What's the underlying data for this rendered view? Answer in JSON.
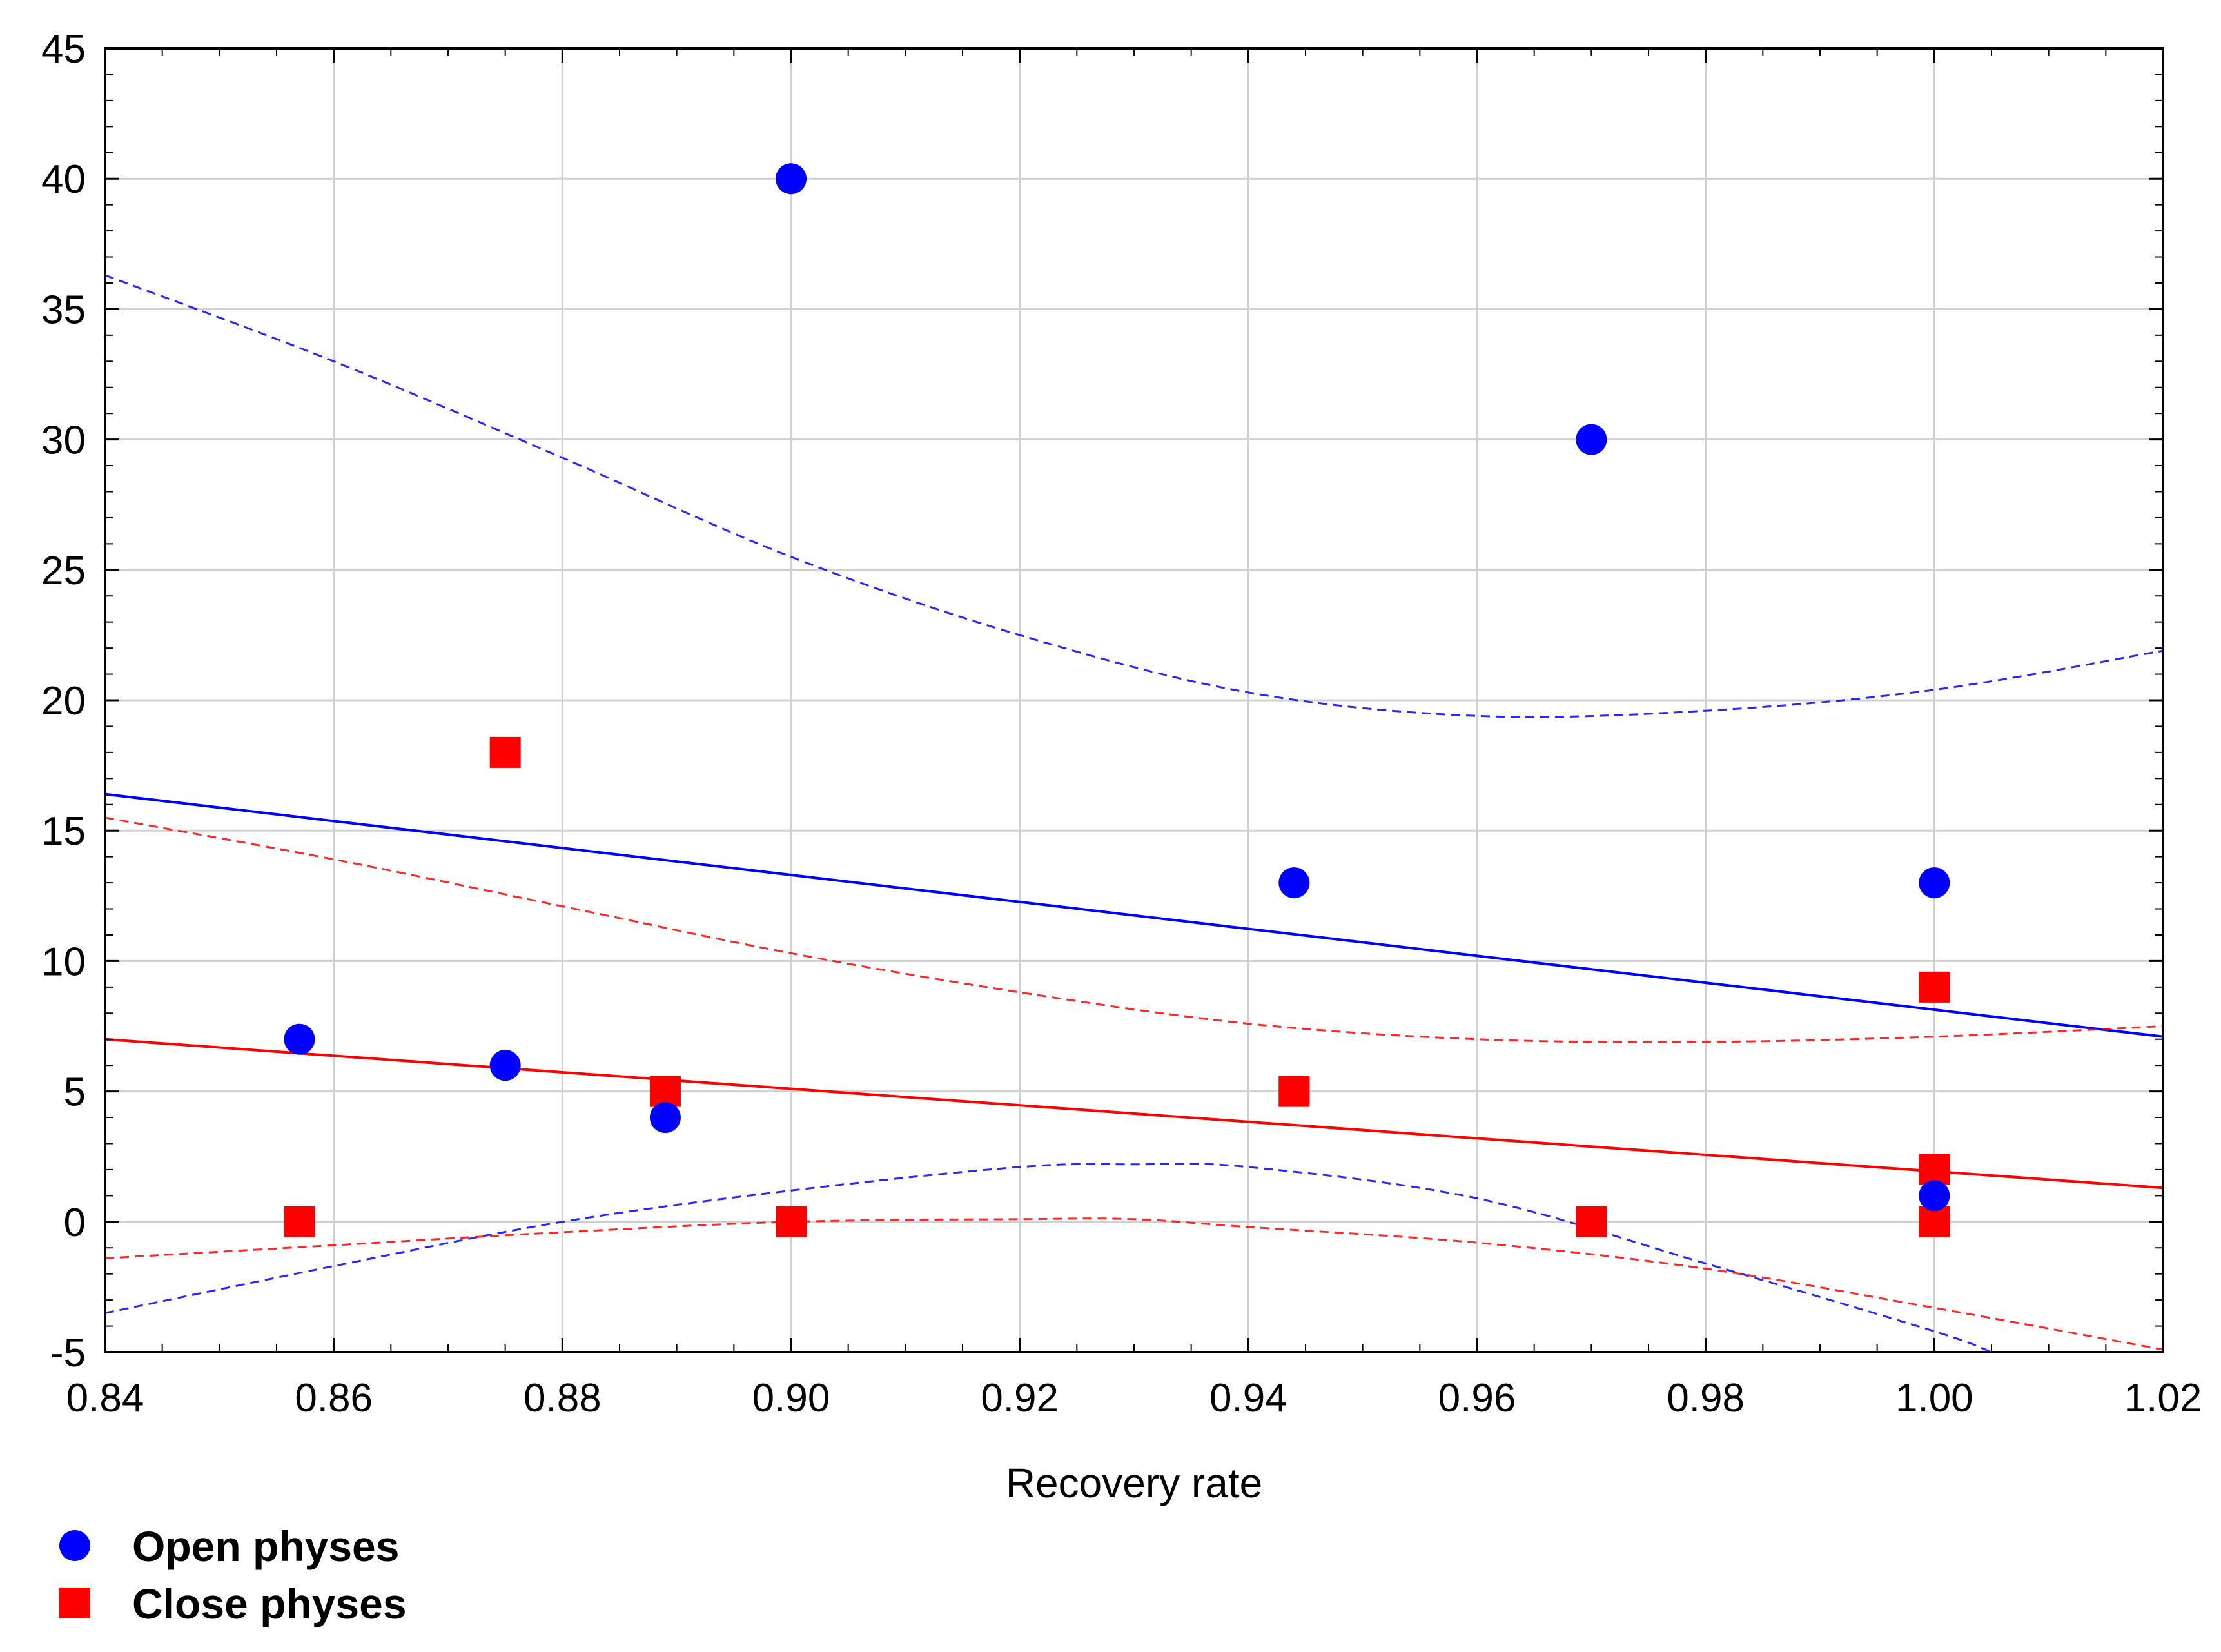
{
  "chart_data": {
    "type": "scatter",
    "title": "",
    "xlabel": "Recovery rate",
    "ylabel": "",
    "xlim": [
      0.84,
      1.02
    ],
    "ylim": [
      -5,
      45
    ],
    "xticks": [
      0.84,
      0.86,
      0.88,
      0.9,
      0.92,
      0.94,
      0.96,
      0.98,
      1.0,
      1.02
    ],
    "xtick_labels": [
      "0.84",
      "0.86",
      "0.88",
      "0.90",
      "0.92",
      "0.94",
      "0.96",
      "0.98",
      "1.00",
      "1.02"
    ],
    "yticks": [
      -5,
      0,
      5,
      10,
      15,
      20,
      25,
      30,
      35,
      40,
      45
    ],
    "ytick_labels": [
      "-5",
      "0",
      "5",
      "10",
      "15",
      "20",
      "25",
      "30",
      "35",
      "40",
      "45"
    ],
    "grid": true,
    "legend_position": "bottom-left",
    "series": [
      {
        "name": "Open physes",
        "marker": "circle",
        "color": "#0000ff",
        "points": [
          [
            0.857,
            7
          ],
          [
            0.875,
            6
          ],
          [
            0.889,
            4
          ],
          [
            0.9,
            40
          ],
          [
            0.944,
            13
          ],
          [
            0.97,
            30
          ],
          [
            1.0,
            13
          ],
          [
            1.0,
            1
          ]
        ],
        "fit_line": [
          [
            0.84,
            16.4
          ],
          [
            1.02,
            7.1
          ]
        ],
        "ci_upper": [
          [
            0.84,
            36.3
          ],
          [
            0.86,
            33.0
          ],
          [
            0.88,
            29.3
          ],
          [
            0.9,
            25.5
          ],
          [
            0.92,
            22.5
          ],
          [
            0.94,
            20.3
          ],
          [
            0.96,
            19.4
          ],
          [
            0.98,
            19.6
          ],
          [
            1.0,
            20.4
          ],
          [
            1.02,
            21.9
          ]
        ],
        "ci_lower": [
          [
            0.84,
            -3.5
          ],
          [
            0.86,
            -1.7
          ],
          [
            0.88,
            0.0
          ],
          [
            0.9,
            1.2
          ],
          [
            0.92,
            2.1
          ],
          [
            0.93,
            2.2
          ],
          [
            0.94,
            2.1
          ],
          [
            0.96,
            0.9
          ],
          [
            0.98,
            -1.6
          ],
          [
            1.0,
            -4.2
          ],
          [
            1.005,
            -5.0
          ]
        ]
      },
      {
        "name": "Close physes",
        "marker": "square",
        "color": "#ff0000",
        "points": [
          [
            0.857,
            0
          ],
          [
            0.875,
            18
          ],
          [
            0.889,
            5
          ],
          [
            0.9,
            0
          ],
          [
            0.944,
            5
          ],
          [
            0.97,
            0
          ],
          [
            1.0,
            9
          ],
          [
            1.0,
            2
          ],
          [
            1.0,
            0
          ]
        ],
        "fit_line": [
          [
            0.84,
            7.0
          ],
          [
            1.02,
            1.3
          ]
        ],
        "ci_upper": [
          [
            0.84,
            15.5
          ],
          [
            0.86,
            13.9
          ],
          [
            0.88,
            12.1
          ],
          [
            0.9,
            10.3
          ],
          [
            0.92,
            8.8
          ],
          [
            0.94,
            7.6
          ],
          [
            0.96,
            7.0
          ],
          [
            0.98,
            6.9
          ],
          [
            1.0,
            7.1
          ],
          [
            1.02,
            7.5
          ]
        ],
        "ci_lower": [
          [
            0.84,
            -1.4
          ],
          [
            0.86,
            -0.9
          ],
          [
            0.88,
            -0.4
          ],
          [
            0.9,
            0.0
          ],
          [
            0.92,
            0.1
          ],
          [
            0.93,
            0.1
          ],
          [
            0.94,
            -0.2
          ],
          [
            0.96,
            -0.8
          ],
          [
            0.98,
            -1.8
          ],
          [
            1.0,
            -3.3
          ],
          [
            1.02,
            -4.9
          ]
        ]
      }
    ]
  }
}
